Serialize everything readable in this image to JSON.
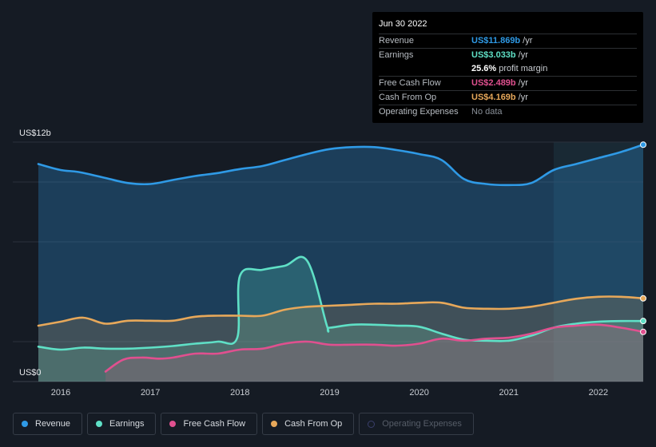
{
  "tooltip": {
    "date": "Jun 30 2022",
    "rows": [
      {
        "label": "Revenue",
        "value": "US$11.869b",
        "unit": "/yr",
        "color": "#2f9ae6"
      },
      {
        "label": "Earnings",
        "value": "US$3.033b",
        "unit": "/yr",
        "color": "#5fe0c6"
      },
      {
        "label": "",
        "value": "25.6%",
        "unit": "profit margin",
        "color": "#ffffff"
      },
      {
        "label": "Free Cash Flow",
        "value": "US$2.489b",
        "unit": "/yr",
        "color": "#e0508f"
      },
      {
        "label": "Cash From Op",
        "value": "US$4.169b",
        "unit": "/yr",
        "color": "#e7a85a"
      },
      {
        "label": "Operating Expenses",
        "value": "No data",
        "unit": "",
        "color": "#8a9099"
      }
    ]
  },
  "legend": [
    {
      "label": "Revenue",
      "color": "#2f9ae6",
      "enabled": true
    },
    {
      "label": "Earnings",
      "color": "#5fe0c6",
      "enabled": true
    },
    {
      "label": "Free Cash Flow",
      "color": "#e0508f",
      "enabled": true
    },
    {
      "label": "Cash From Op",
      "color": "#e7a85a",
      "enabled": true
    },
    {
      "label": "Operating Expenses",
      "color": "#3a3f6b",
      "enabled": false
    }
  ],
  "chart_data": {
    "type": "area",
    "title": "",
    "y_top_label": "US$12b",
    "y_bottom_label": "US$0",
    "ylim": [
      0,
      12
    ],
    "xlim": [
      2015.75,
      2022.5
    ],
    "x_ticks": [
      2016,
      2017,
      2018,
      2019,
      2020,
      2021,
      2022
    ],
    "x_tick_labels": [
      "2016",
      "2017",
      "2018",
      "2019",
      "2020",
      "2021",
      "2022"
    ],
    "highlight_from": 2021.5,
    "series": [
      {
        "name": "Revenue",
        "color": "#2f9ae6",
        "x": [
          2015.75,
          2016.0,
          2016.2,
          2016.5,
          2016.75,
          2017.0,
          2017.25,
          2017.5,
          2017.75,
          2018.0,
          2018.25,
          2018.5,
          2018.75,
          2019.0,
          2019.25,
          2019.5,
          2019.75,
          2020.0,
          2020.25,
          2020.5,
          2020.75,
          2021.0,
          2021.25,
          2021.5,
          2021.75,
          2022.0,
          2022.25,
          2022.5
        ],
        "y": [
          10.9,
          10.6,
          10.5,
          10.2,
          9.95,
          9.9,
          10.1,
          10.3,
          10.45,
          10.65,
          10.8,
          11.1,
          11.4,
          11.65,
          11.75,
          11.75,
          11.6,
          11.4,
          11.1,
          10.15,
          9.9,
          9.85,
          9.95,
          10.6,
          10.9,
          11.2,
          11.5,
          11.869
        ]
      },
      {
        "name": "Earnings",
        "color": "#5fe0c6",
        "x": [
          2015.75,
          2016.0,
          2016.25,
          2016.5,
          2016.75,
          2017.0,
          2017.25,
          2017.5,
          2017.75,
          2017.97,
          2018.0,
          2018.25,
          2018.5,
          2018.75,
          2018.97,
          2019.0,
          2019.25,
          2019.5,
          2019.75,
          2020.0,
          2020.25,
          2020.5,
          2020.75,
          2021.0,
          2021.25,
          2021.5,
          2021.75,
          2022.0,
          2022.25,
          2022.5
        ],
        "y": [
          1.75,
          1.6,
          1.7,
          1.65,
          1.65,
          1.7,
          1.78,
          1.9,
          2.0,
          2.2,
          5.3,
          5.6,
          5.8,
          6.05,
          2.8,
          2.7,
          2.85,
          2.85,
          2.8,
          2.75,
          2.4,
          2.1,
          2.05,
          2.05,
          2.3,
          2.7,
          2.9,
          3.0,
          3.033,
          3.033
        ]
      },
      {
        "name": "Free Cash Flow",
        "color": "#e0508f",
        "x": [
          2016.5,
          2016.7,
          2016.9,
          2017.1,
          2017.25,
          2017.5,
          2017.75,
          2018.0,
          2018.25,
          2018.5,
          2018.75,
          2019.0,
          2019.25,
          2019.5,
          2019.75,
          2020.0,
          2020.25,
          2020.5,
          2020.75,
          2021.0,
          2021.25,
          2021.5,
          2021.75,
          2022.0,
          2022.25,
          2022.5
        ],
        "y": [
          0.5,
          1.1,
          1.2,
          1.15,
          1.2,
          1.4,
          1.4,
          1.6,
          1.65,
          1.9,
          2.0,
          1.85,
          1.85,
          1.85,
          1.8,
          1.9,
          2.15,
          2.05,
          2.15,
          2.2,
          2.4,
          2.7,
          2.8,
          2.85,
          2.7,
          2.489
        ]
      },
      {
        "name": "Cash From Op",
        "color": "#e7a85a",
        "x": [
          2015.75,
          2016.0,
          2016.25,
          2016.5,
          2016.75,
          2017.0,
          2017.25,
          2017.5,
          2017.75,
          2018.0,
          2018.25,
          2018.5,
          2018.75,
          2019.0,
          2019.25,
          2019.5,
          2019.75,
          2020.0,
          2020.25,
          2020.5,
          2020.75,
          2021.0,
          2021.25,
          2021.5,
          2021.75,
          2022.0,
          2022.25,
          2022.5
        ],
        "y": [
          2.8,
          3.0,
          3.2,
          2.9,
          3.05,
          3.05,
          3.05,
          3.25,
          3.3,
          3.3,
          3.3,
          3.6,
          3.75,
          3.8,
          3.85,
          3.9,
          3.9,
          3.95,
          3.95,
          3.7,
          3.65,
          3.65,
          3.75,
          3.95,
          4.15,
          4.25,
          4.25,
          4.169
        ]
      }
    ]
  }
}
